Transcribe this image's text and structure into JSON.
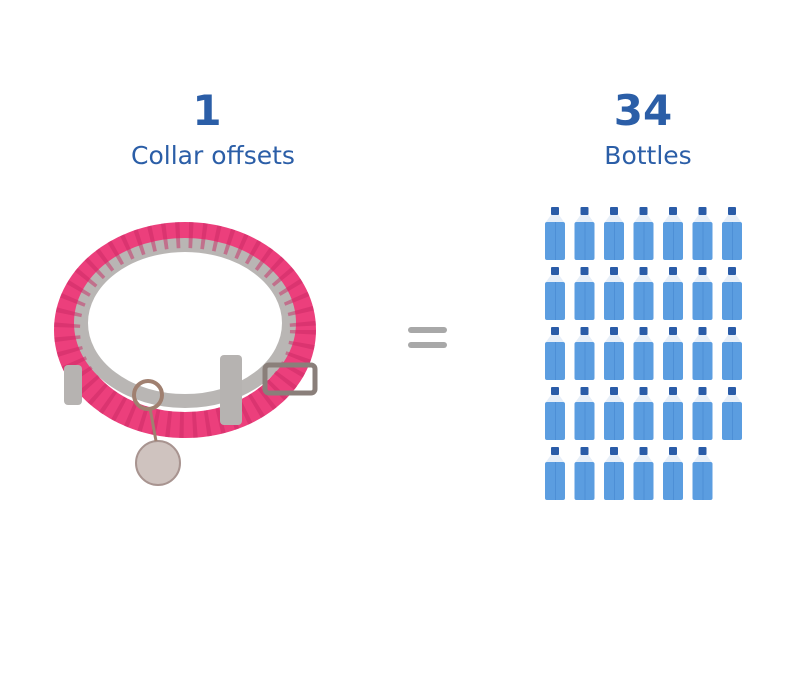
{
  "left": {
    "value": "1",
    "label": "Collar offsets",
    "image": "pink-braided-dog-collar"
  },
  "right": {
    "value": "34",
    "label": "Bottles",
    "icon": "water-bottle-icon",
    "count": 34,
    "per_row": 7
  },
  "operator": "equals",
  "colors": {
    "text": "#2b5ea7",
    "bottle_body": "#5b9de0",
    "bottle_cap": "#2a5ca8",
    "collar": "#f0457f",
    "equals": "#a8a8a8"
  }
}
